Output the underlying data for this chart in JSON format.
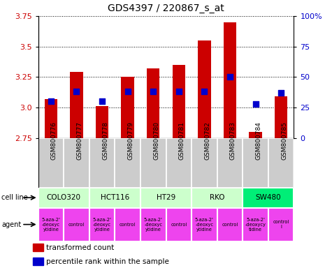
{
  "title": "GDS4397 / 220867_s_at",
  "samples": [
    "GSM800776",
    "GSM800777",
    "GSM800778",
    "GSM800779",
    "GSM800780",
    "GSM800781",
    "GSM800782",
    "GSM800783",
    "GSM800784",
    "GSM800785"
  ],
  "red_values": [
    3.07,
    3.29,
    3.01,
    3.25,
    3.32,
    3.35,
    3.55,
    3.7,
    2.8,
    3.09
  ],
  "blue_values": [
    0.3,
    0.38,
    0.3,
    0.38,
    0.38,
    0.38,
    0.38,
    0.5,
    0.28,
    0.37
  ],
  "ylim_left": [
    2.75,
    3.75
  ],
  "ylim_right": [
    0,
    100
  ],
  "yticks_left": [
    2.75,
    3.0,
    3.25,
    3.5,
    3.75
  ],
  "yticks_right": [
    0,
    25,
    50,
    75,
    100
  ],
  "ytick_labels_right": [
    "0",
    "25",
    "50",
    "75",
    "100%"
  ],
  "bar_color": "#cc0000",
  "dot_color": "#0000cc",
  "bar_bottom": 2.75,
  "cell_lines": [
    {
      "label": "COLO320",
      "start": 0,
      "end": 2,
      "color": "#ccffcc"
    },
    {
      "label": "HCT116",
      "start": 2,
      "end": 4,
      "color": "#ccffcc"
    },
    {
      "label": "HT29",
      "start": 4,
      "end": 6,
      "color": "#ccffcc"
    },
    {
      "label": "RKO",
      "start": 6,
      "end": 8,
      "color": "#ccffcc"
    },
    {
      "label": "SW480",
      "start": 8,
      "end": 10,
      "color": "#00ee77"
    }
  ],
  "agents": [
    {
      "label": "5-aza-2'\n-deoxyc\nytidine",
      "start": 0,
      "end": 1,
      "color": "#ee44ee"
    },
    {
      "label": "control",
      "start": 1,
      "end": 2,
      "color": "#ee44ee"
    },
    {
      "label": "5-aza-2'\n-deoxyc\nytidine",
      "start": 2,
      "end": 3,
      "color": "#ee44ee"
    },
    {
      "label": "control",
      "start": 3,
      "end": 4,
      "color": "#ee44ee"
    },
    {
      "label": "5-aza-2'\n-deoxyc\nytidine",
      "start": 4,
      "end": 5,
      "color": "#ee44ee"
    },
    {
      "label": "control",
      "start": 5,
      "end": 6,
      "color": "#ee44ee"
    },
    {
      "label": "5-aza-2'\n-deoxyc\nytidine",
      "start": 6,
      "end": 7,
      "color": "#ee44ee"
    },
    {
      "label": "control",
      "start": 7,
      "end": 8,
      "color": "#ee44ee"
    },
    {
      "label": "5-aza-2'\n-deoxycy\ntidine",
      "start": 8,
      "end": 9,
      "color": "#ee44ee"
    },
    {
      "label": "control\nl",
      "start": 9,
      "end": 10,
      "color": "#ee44ee"
    }
  ],
  "sample_bg_color": "#cccccc",
  "tick_color_left": "#cc0000",
  "tick_color_right": "#0000cc",
  "legend_red": "transformed count",
  "legend_blue": "percentile rank within the sample",
  "bar_width": 0.5
}
